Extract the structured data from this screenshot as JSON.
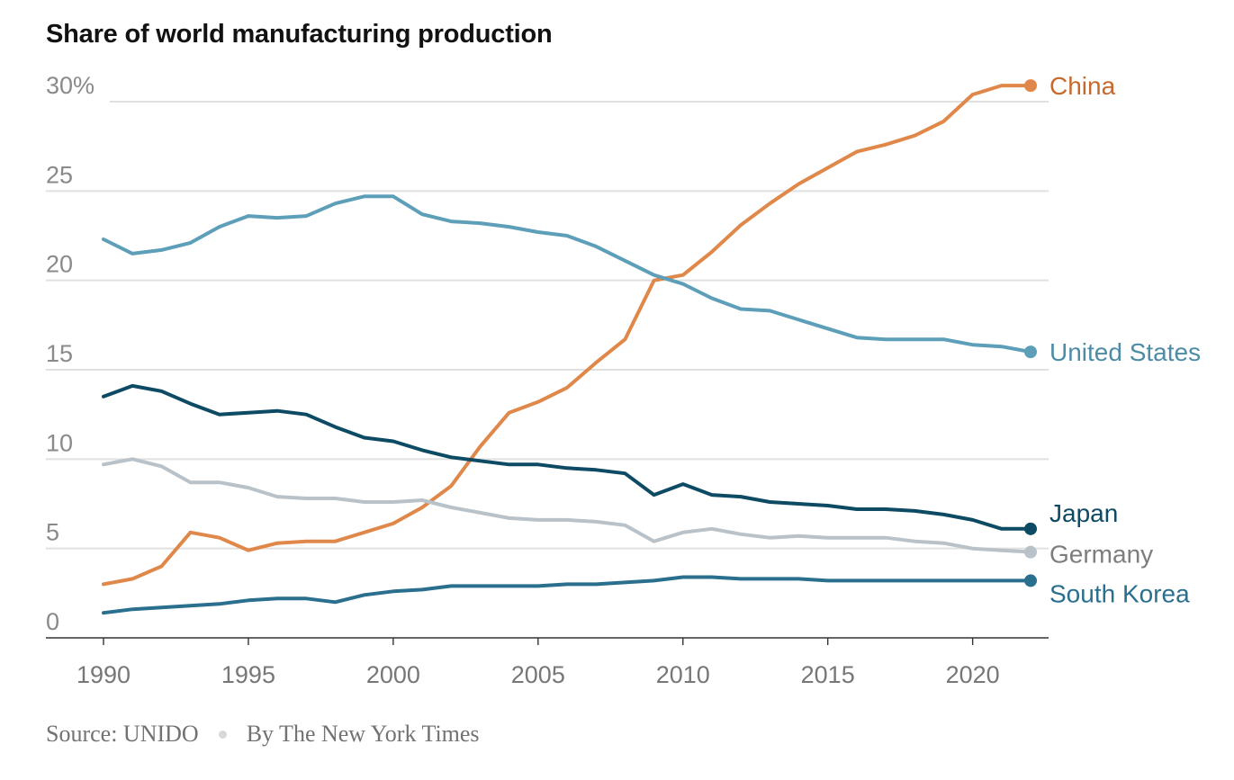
{
  "chart_data": {
    "type": "line",
    "title": "Share of world manufacturing production",
    "xlabel": "",
    "ylabel": "",
    "xlim": [
      1990,
      2022
    ],
    "ylim": [
      0,
      30
    ],
    "x_ticks": [
      1990,
      1995,
      2000,
      2005,
      2010,
      2015,
      2020
    ],
    "x_tick_labels": [
      "1990",
      "1995",
      "2000",
      "2005",
      "2010",
      "2015",
      "2020"
    ],
    "y_ticks": [
      0,
      5,
      10,
      15,
      20,
      25,
      30
    ],
    "y_tick_labels": [
      "0",
      "5",
      "10",
      "15",
      "20",
      "25",
      "30%"
    ],
    "grid": true,
    "legend": "direct labels at line ends",
    "x": [
      1990,
      1991,
      1992,
      1993,
      1994,
      1995,
      1996,
      1997,
      1998,
      1999,
      2000,
      2001,
      2002,
      2003,
      2004,
      2005,
      2006,
      2007,
      2008,
      2009,
      2010,
      2011,
      2012,
      2013,
      2014,
      2015,
      2016,
      2017,
      2018,
      2019,
      2020,
      2021,
      2022
    ],
    "series": [
      {
        "name": "China",
        "color": "#e0874a",
        "label_color": "#c8692b",
        "values": [
          3.0,
          3.3,
          4.0,
          5.9,
          5.6,
          4.9,
          5.3,
          5.4,
          5.4,
          5.9,
          6.4,
          7.3,
          8.5,
          10.7,
          12.6,
          13.2,
          14.0,
          15.4,
          16.7,
          20.0,
          20.3,
          21.6,
          23.1,
          24.3,
          25.4,
          26.3,
          27.2,
          27.6,
          28.1,
          28.9,
          30.4,
          30.9,
          30.9
        ]
      },
      {
        "name": "United States",
        "color": "#5d9eb8",
        "label_color": "#4e8ca6",
        "values": [
          22.3,
          21.5,
          21.7,
          22.1,
          23.0,
          23.6,
          23.5,
          23.6,
          24.3,
          24.7,
          24.7,
          23.7,
          23.3,
          23.2,
          23.0,
          22.7,
          22.5,
          21.9,
          21.1,
          20.3,
          19.8,
          19.0,
          18.4,
          18.3,
          17.8,
          17.3,
          16.8,
          16.7,
          16.7,
          16.7,
          16.4,
          16.3,
          16.0
        ]
      },
      {
        "name": "Japan",
        "color": "#0d4a63",
        "label_color": "#0d4a63",
        "values": [
          13.5,
          14.1,
          13.8,
          13.1,
          12.5,
          12.6,
          12.7,
          12.5,
          11.8,
          11.2,
          11.0,
          10.5,
          10.1,
          9.9,
          9.7,
          9.7,
          9.5,
          9.4,
          9.2,
          8.0,
          8.6,
          8.0,
          7.9,
          7.6,
          7.5,
          7.4,
          7.2,
          7.2,
          7.1,
          6.9,
          6.6,
          6.1,
          6.1
        ]
      },
      {
        "name": "Germany",
        "color": "#b8c2c8",
        "label_color": "#7d7d7d",
        "values": [
          9.7,
          10.0,
          9.6,
          8.7,
          8.7,
          8.4,
          7.9,
          7.8,
          7.8,
          7.6,
          7.6,
          7.7,
          7.3,
          7.0,
          6.7,
          6.6,
          6.6,
          6.5,
          6.3,
          5.4,
          5.9,
          6.1,
          5.8,
          5.6,
          5.7,
          5.6,
          5.6,
          5.6,
          5.4,
          5.3,
          5.0,
          4.9,
          4.8
        ]
      },
      {
        "name": "South Korea",
        "color": "#2a6f8e",
        "label_color": "#2a6f8e",
        "values": [
          1.4,
          1.6,
          1.7,
          1.8,
          1.9,
          2.1,
          2.2,
          2.2,
          2.0,
          2.4,
          2.6,
          2.7,
          2.9,
          2.9,
          2.9,
          2.9,
          3.0,
          3.0,
          3.1,
          3.2,
          3.4,
          3.4,
          3.3,
          3.3,
          3.3,
          3.2,
          3.2,
          3.2,
          3.2,
          3.2,
          3.2,
          3.2,
          3.2
        ]
      }
    ]
  },
  "footer": {
    "source": "Source: UNIDO",
    "byline": "By The New York Times"
  }
}
